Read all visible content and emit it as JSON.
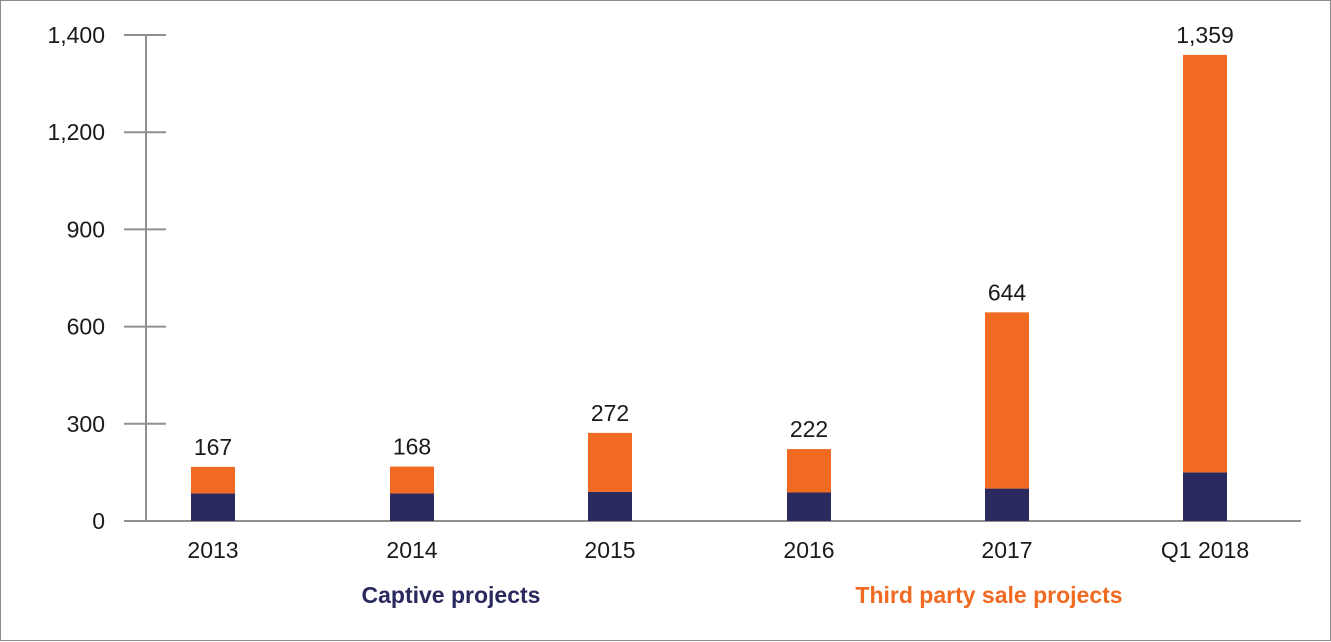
{
  "chart_data": {
    "type": "bar",
    "stacked": true,
    "categories": [
      "2013",
      "2014",
      "2015",
      "2016",
      "2017",
      "Q1 2018"
    ],
    "series": [
      {
        "name": "Captive projects",
        "color": "#2a2a5e",
        "values": [
          85,
          85,
          90,
          88,
          100,
          150
        ]
      },
      {
        "name": "Third party sale projects",
        "color": "#f06a22",
        "values": [
          82,
          83,
          182,
          134,
          544,
          1209
        ]
      }
    ],
    "totals": [
      167,
      168,
      272,
      222,
      644,
      1359
    ],
    "total_labels": [
      "167",
      "168",
      "272",
      "222",
      "644",
      "1,359"
    ],
    "ylim": [
      0,
      1500
    ],
    "yticks": [
      0,
      300,
      600,
      900,
      1200,
      1400
    ],
    "ytick_labels": [
      "0",
      "300",
      "600",
      "900",
      "1,200",
      "1,400"
    ],
    "title": "",
    "xlabel": "",
    "ylabel": "",
    "grid": false,
    "legend_position": "bottom"
  }
}
